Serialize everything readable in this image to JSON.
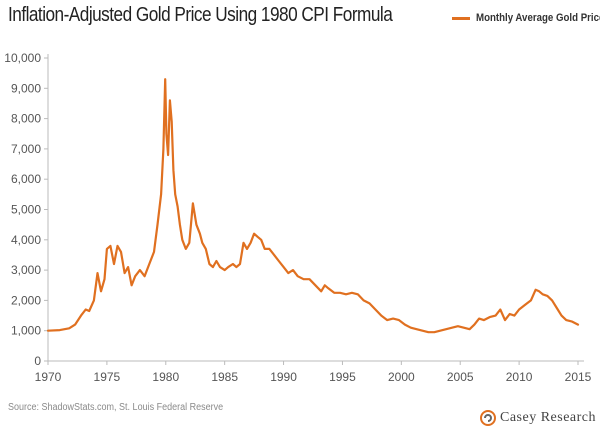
{
  "title": "Inflation-Adjusted Gold Price Using 1980 CPI Formula",
  "legend_label": "Monthly Average Gold Price",
  "source": "Source: ShadowStats.com, St. Louis Federal Reserve",
  "logo_text": "Casey Research",
  "colors": {
    "series": "#e07020",
    "axis": "#bbbbbb",
    "text": "#555555"
  },
  "chart_data": {
    "type": "line",
    "title": "Inflation-Adjusted Gold Price Using 1980 CPI Formula",
    "xlabel": "",
    "ylabel": "",
    "xlim": [
      1970,
      2015
    ],
    "ylim": [
      0,
      10000
    ],
    "x_ticks": [
      1970,
      1975,
      1980,
      1985,
      1990,
      1995,
      2000,
      2005,
      2010,
      2015
    ],
    "y_ticks": [
      0,
      1000,
      2000,
      3000,
      4000,
      5000,
      6000,
      7000,
      8000,
      9000,
      10000
    ],
    "y_tick_labels": [
      "0",
      "1,000",
      "2,000",
      "3,000",
      "4,000",
      "5,000",
      "6,000",
      "7,000",
      "8,000",
      "9,000",
      "10,000"
    ],
    "grid": false,
    "legend": "top-right",
    "series": [
      {
        "name": "Monthly Average Gold Price",
        "x": [
          1970.0,
          1971.0,
          1971.8,
          1972.3,
          1972.8,
          1973.2,
          1973.5,
          1973.9,
          1974.2,
          1974.5,
          1974.8,
          1975.0,
          1975.3,
          1975.6,
          1975.9,
          1976.2,
          1976.5,
          1976.8,
          1977.1,
          1977.4,
          1977.8,
          1978.2,
          1978.6,
          1979.0,
          1979.3,
          1979.6,
          1979.8,
          1979.95,
          1980.05,
          1980.2,
          1980.35,
          1980.5,
          1980.65,
          1980.8,
          1981.0,
          1981.2,
          1981.4,
          1981.7,
          1982.0,
          1982.3,
          1982.6,
          1982.9,
          1983.1,
          1983.4,
          1983.7,
          1984.0,
          1984.3,
          1984.6,
          1985.0,
          1985.3,
          1985.7,
          1986.0,
          1986.3,
          1986.6,
          1986.9,
          1987.2,
          1987.5,
          1987.8,
          1988.1,
          1988.4,
          1988.8,
          1989.2,
          1989.6,
          1990.0,
          1990.4,
          1990.8,
          1991.2,
          1991.7,
          1992.2,
          1992.7,
          1993.2,
          1993.5,
          1993.8,
          1994.3,
          1994.8,
          1995.3,
          1995.8,
          1996.3,
          1996.8,
          1997.3,
          1997.8,
          1998.3,
          1998.8,
          1999.3,
          1999.8,
          2000.3,
          2000.8,
          2001.3,
          2001.8,
          2002.3,
          2002.8,
          2003.3,
          2003.8,
          2004.3,
          2004.8,
          2005.3,
          2005.8,
          2006.2,
          2006.6,
          2007.0,
          2007.5,
          2008.0,
          2008.4,
          2008.8,
          2009.2,
          2009.6,
          2010.0,
          2010.5,
          2011.0,
          2011.4,
          2011.7,
          2012.0,
          2012.4,
          2012.8,
          2013.2,
          2013.6,
          2014.0,
          2014.5,
          2015.0
        ],
        "values": [
          1000,
          1020,
          1080,
          1200,
          1500,
          1700,
          1650,
          2000,
          2900,
          2300,
          2700,
          3700,
          3800,
          3200,
          3800,
          3600,
          2900,
          3100,
          2500,
          2800,
          3000,
          2800,
          3200,
          3600,
          4500,
          5500,
          7000,
          9300,
          7500,
          6800,
          8600,
          7900,
          6300,
          5500,
          5100,
          4500,
          4000,
          3700,
          3900,
          5200,
          4500,
          4200,
          3900,
          3700,
          3200,
          3100,
          3300,
          3100,
          3000,
          3100,
          3200,
          3100,
          3200,
          3900,
          3700,
          3900,
          4200,
          4100,
          4000,
          3700,
          3700,
          3500,
          3300,
          3100,
          2900,
          3000,
          2800,
          2700,
          2700,
          2500,
          2300,
          2500,
          2400,
          2250,
          2250,
          2200,
          2250,
          2200,
          2000,
          1900,
          1700,
          1500,
          1350,
          1400,
          1350,
          1200,
          1100,
          1050,
          1000,
          950,
          950,
          1000,
          1050,
          1100,
          1150,
          1100,
          1050,
          1200,
          1400,
          1350,
          1450,
          1500,
          1700,
          1350,
          1550,
          1500,
          1700,
          1850,
          2000,
          2350,
          2300,
          2200,
          2150,
          2000,
          1750,
          1500,
          1350,
          1300,
          1200
        ]
      }
    ]
  }
}
